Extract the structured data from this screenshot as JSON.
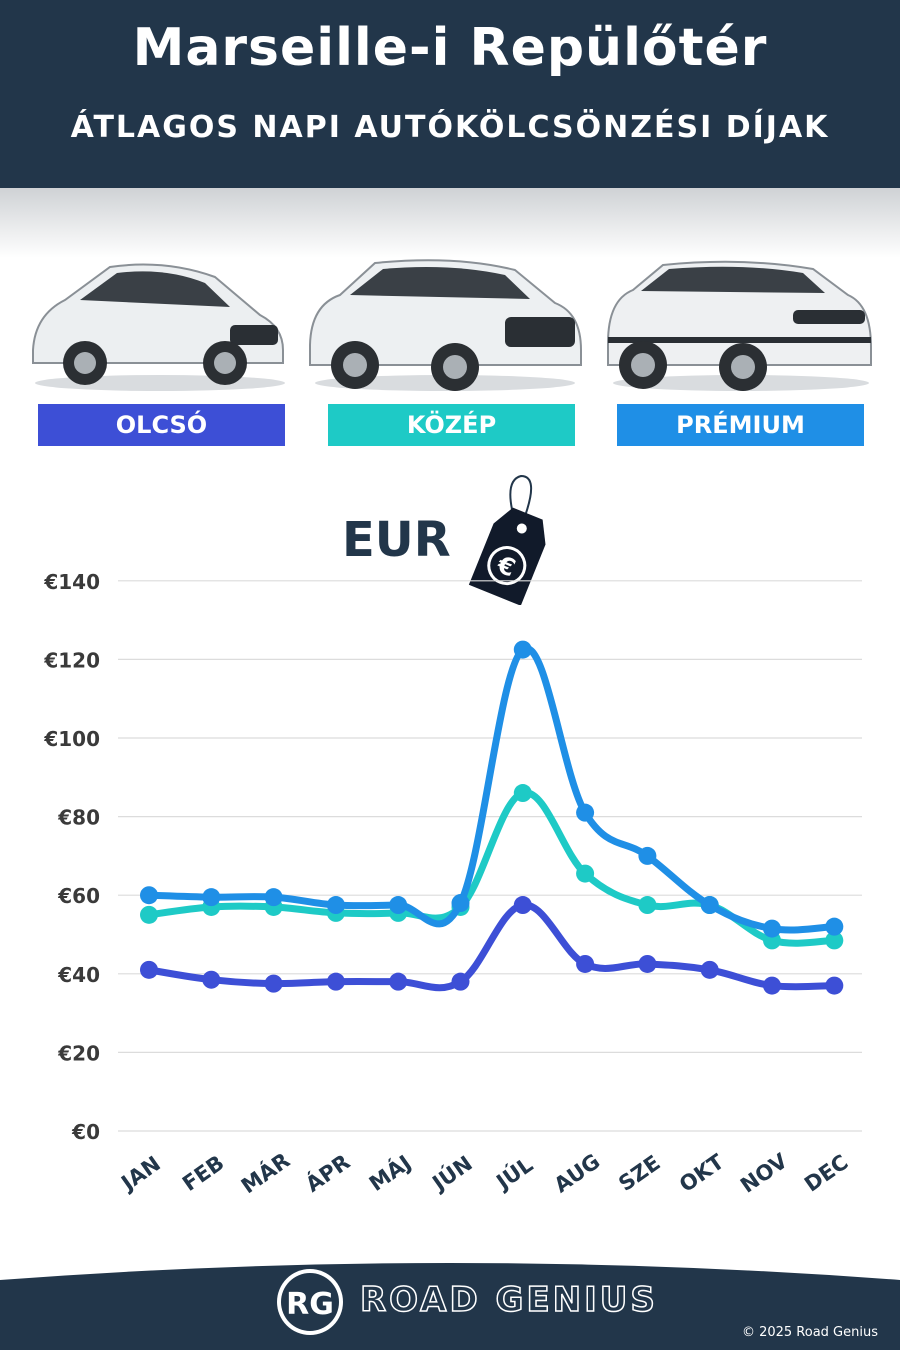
{
  "header": {
    "title": "Marseille-i Repülőtér",
    "subtitle": "ÁTLAGOS NAPI AUTÓKÖLCSÖNZÉSI DÍJAK"
  },
  "categories": [
    {
      "label": "OLCSÓ",
      "color": "#3d4fd6"
    },
    {
      "label": "KÖZÉP",
      "color": "#1ecac6"
    },
    {
      "label": "PRÉMIUM",
      "color": "#1f8fe6"
    }
  ],
  "currency_label": "EUR",
  "currency_icon": "euro-price-tag-icon",
  "chart_data": {
    "type": "line",
    "categories": [
      "JAN",
      "FEB",
      "MÁR",
      "ÁPR",
      "MÁJ",
      "JÚN",
      "JÚL",
      "AUG",
      "SZE",
      "OKT",
      "NOV",
      "DEC"
    ],
    "ylim": [
      0,
      140
    ],
    "yticks": [
      0,
      20,
      40,
      60,
      80,
      100,
      120,
      140
    ],
    "ytick_labels": [
      "€0",
      "€20",
      "€40",
      "€60",
      "€80",
      "€100",
      "€120",
      "€140"
    ],
    "grid": true,
    "series": [
      {
        "name": "OLCSÓ",
        "color": "#3d4fd6",
        "values": [
          41,
          38.5,
          37.5,
          38,
          38,
          38,
          57.5,
          42.5,
          42.5,
          41,
          37,
          37
        ]
      },
      {
        "name": "KÖZÉP",
        "color": "#1ecac6",
        "values": [
          55,
          57,
          57,
          55.5,
          55.5,
          57,
          86,
          65.5,
          57.5,
          57.5,
          48.5,
          48.5
        ]
      },
      {
        "name": "PRÉMIUM",
        "color": "#1f8fe6",
        "values": [
          60,
          59.5,
          59.5,
          57.5,
          57.5,
          58,
          122.5,
          81,
          70,
          57.5,
          51.5,
          52
        ]
      }
    ]
  },
  "footer": {
    "logo_text": "RG",
    "brand": "ROAD GENIUS",
    "copyright": "© 2025 Road Genius"
  }
}
